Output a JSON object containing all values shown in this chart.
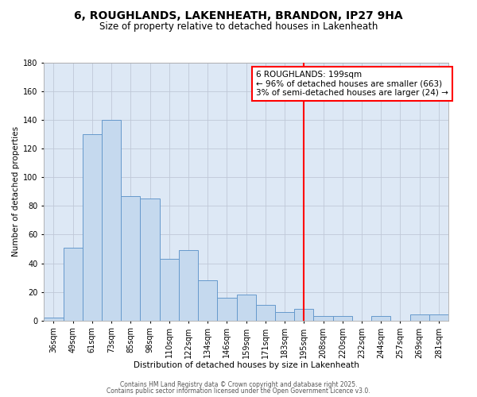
{
  "title": "6, ROUGHLANDS, LAKENHEATH, BRANDON, IP27 9HA",
  "subtitle": "Size of property relative to detached houses in Lakenheath",
  "xlabel": "Distribution of detached houses by size in Lakenheath",
  "ylabel": "Number of detached properties",
  "bar_labels": [
    "36sqm",
    "49sqm",
    "61sqm",
    "73sqm",
    "85sqm",
    "98sqm",
    "110sqm",
    "122sqm",
    "134sqm",
    "146sqm",
    "159sqm",
    "171sqm",
    "183sqm",
    "195sqm",
    "208sqm",
    "220sqm",
    "232sqm",
    "244sqm",
    "257sqm",
    "269sqm",
    "281sqm"
  ],
  "bar_values": [
    2,
    51,
    130,
    140,
    87,
    85,
    43,
    49,
    28,
    16,
    18,
    11,
    6,
    8,
    3,
    3,
    0,
    3,
    0,
    4,
    4
  ],
  "bar_color": "#c5d9ee",
  "bar_edge_color": "#6699cc",
  "ylim": [
    0,
    180
  ],
  "yticks": [
    0,
    20,
    40,
    60,
    80,
    100,
    120,
    140,
    160,
    180
  ],
  "vline_index": 13,
  "vline_color": "red",
  "annotation_line1": "6 ROUGHLANDS: 199sqm",
  "annotation_line2": "← 96% of detached houses are smaller (663)",
  "annotation_line3": "3% of semi-detached houses are larger (24) →",
  "bg_color": "#dde8f5",
  "grid_color": "#c0c8d8",
  "footnote1": "Contains HM Land Registry data © Crown copyright and database right 2025.",
  "footnote2": "Contains public sector information licensed under the Open Government Licence v3.0.",
  "title_fontsize": 10,
  "subtitle_fontsize": 8.5,
  "axis_label_fontsize": 7.5,
  "tick_fontsize": 7,
  "annotation_fontsize": 7.5,
  "footnote_fontsize": 5.5
}
